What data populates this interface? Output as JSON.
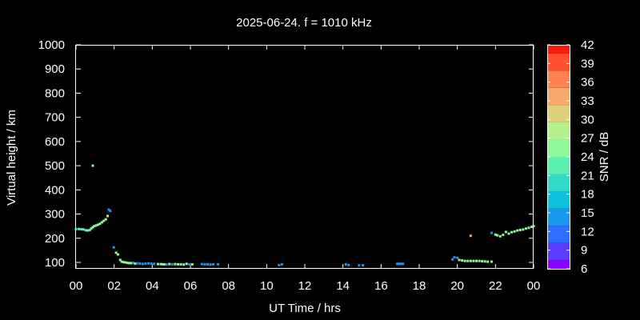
{
  "chart_data": {
    "type": "scatter",
    "title": "2025-06-24. f = 1010 kHz",
    "xlabel": "UT Time / hrs",
    "ylabel": "Virtual height / km",
    "xlim": [
      0,
      24
    ],
    "ylim": [
      70,
      1000
    ],
    "x_tick_labels": [
      "00",
      "02",
      "04",
      "06",
      "08",
      "10",
      "12",
      "14",
      "16",
      "18",
      "20",
      "22",
      "00"
    ],
    "y_ticks": [
      100,
      200,
      300,
      400,
      500,
      600,
      700,
      800,
      900,
      1000
    ],
    "grid": false,
    "colorbar": {
      "label": "SNR / dB",
      "ticks": [
        6,
        9,
        12,
        15,
        18,
        21,
        24,
        27,
        30,
        33,
        36,
        39,
        42
      ],
      "colors": [
        "#8a00ff",
        "#5a3cff",
        "#2d6dff",
        "#1a98f0",
        "#10c2e0",
        "#30dcc8",
        "#5ef0b0",
        "#8ef89a",
        "#b6f08a",
        "#dcd07a",
        "#f8a86c",
        "#ff8050",
        "#ff5030",
        "#ff1a10"
      ]
    },
    "points": [
      [
        0.0,
        238,
        22
      ],
      [
        0.15,
        238,
        22
      ],
      [
        0.28,
        237,
        22
      ],
      [
        0.4,
        236,
        22
      ],
      [
        0.52,
        233,
        22
      ],
      [
        0.62,
        232,
        22
      ],
      [
        0.72,
        234,
        22
      ],
      [
        0.8,
        240,
        24
      ],
      [
        0.88,
        245,
        24
      ],
      [
        0.96,
        250,
        24
      ],
      [
        1.06,
        253,
        24
      ],
      [
        1.16,
        256,
        24
      ],
      [
        1.26,
        260,
        24
      ],
      [
        1.36,
        266,
        24
      ],
      [
        1.46,
        272,
        24
      ],
      [
        1.56,
        278,
        24
      ],
      [
        1.66,
        292,
        27
      ],
      [
        0.88,
        500,
        24
      ],
      [
        1.72,
        318,
        15
      ],
      [
        1.8,
        313,
        15
      ],
      [
        1.98,
        162,
        13
      ],
      [
        2.1,
        140,
        24
      ],
      [
        2.2,
        133,
        24
      ],
      [
        2.32,
        110,
        24
      ],
      [
        2.4,
        103,
        24
      ],
      [
        2.5,
        101,
        24
      ],
      [
        2.6,
        100,
        24
      ],
      [
        2.7,
        98,
        24
      ],
      [
        2.8,
        97,
        24
      ],
      [
        2.9,
        97,
        24
      ],
      [
        3.0,
        98,
        13
      ],
      [
        3.1,
        95,
        24
      ],
      [
        3.2,
        96,
        13
      ],
      [
        3.35,
        95,
        13
      ],
      [
        3.5,
        94,
        13
      ],
      [
        3.65,
        95,
        13
      ],
      [
        3.8,
        96,
        13
      ],
      [
        3.95,
        95,
        13
      ],
      [
        4.1,
        94,
        13
      ],
      [
        4.3,
        93,
        24
      ],
      [
        4.45,
        93,
        24
      ],
      [
        4.55,
        92,
        24
      ],
      [
        4.65,
        92,
        24
      ],
      [
        4.75,
        91,
        13
      ],
      [
        4.9,
        93,
        24
      ],
      [
        5.05,
        92,
        13
      ],
      [
        5.2,
        93,
        24
      ],
      [
        5.35,
        92,
        24
      ],
      [
        5.5,
        92,
        24
      ],
      [
        5.65,
        91,
        24
      ],
      [
        5.8,
        94,
        24
      ],
      [
        5.95,
        92,
        13
      ],
      [
        6.1,
        92,
        24
      ],
      [
        6.6,
        93,
        13
      ],
      [
        6.75,
        92,
        13
      ],
      [
        6.9,
        92,
        13
      ],
      [
        7.05,
        91,
        13
      ],
      [
        7.2,
        92,
        13
      ],
      [
        7.45,
        92,
        13
      ],
      [
        10.65,
        89,
        13
      ],
      [
        10.8,
        92,
        13
      ],
      [
        14.15,
        92,
        13
      ],
      [
        14.3,
        89,
        13
      ],
      [
        14.85,
        88,
        13
      ],
      [
        15.05,
        88,
        13
      ],
      [
        16.85,
        94,
        15
      ],
      [
        16.95,
        94,
        15
      ],
      [
        17.05,
        94,
        15
      ],
      [
        17.15,
        94,
        15
      ],
      [
        19.75,
        112,
        13
      ],
      [
        19.85,
        121,
        13
      ],
      [
        20.0,
        119,
        13
      ],
      [
        20.1,
        110,
        24
      ],
      [
        20.25,
        108,
        24
      ],
      [
        20.4,
        106,
        24
      ],
      [
        20.55,
        106,
        24
      ],
      [
        20.7,
        106,
        24
      ],
      [
        20.85,
        106,
        24
      ],
      [
        21.0,
        106,
        24
      ],
      [
        21.15,
        106,
        24
      ],
      [
        21.3,
        105,
        24
      ],
      [
        21.45,
        104,
        24
      ],
      [
        21.6,
        103,
        24
      ],
      [
        21.8,
        103,
        24
      ],
      [
        20.7,
        210,
        33
      ],
      [
        21.8,
        222,
        13
      ],
      [
        22.0,
        215,
        24
      ],
      [
        22.1,
        212,
        24
      ],
      [
        22.25,
        208,
        24
      ],
      [
        22.4,
        214,
        24
      ],
      [
        22.55,
        226,
        24
      ],
      [
        22.7,
        219,
        24
      ],
      [
        22.85,
        225,
        24
      ],
      [
        23.0,
        228,
        24
      ],
      [
        23.15,
        232,
        24
      ],
      [
        23.3,
        234,
        24
      ],
      [
        23.45,
        236,
        24
      ],
      [
        23.6,
        240,
        24
      ],
      [
        23.75,
        243,
        24
      ],
      [
        23.9,
        247,
        24
      ],
      [
        24.0,
        250,
        24
      ]
    ]
  }
}
